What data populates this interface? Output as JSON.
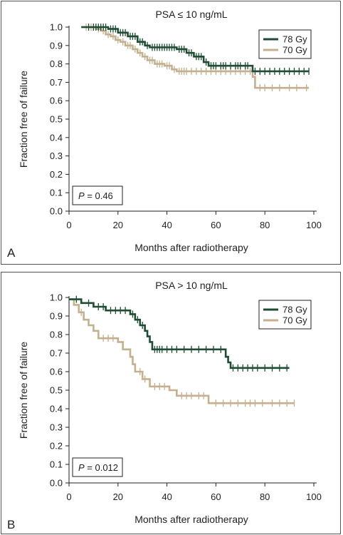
{
  "chart_data": [
    {
      "type": "line",
      "panel_letter": "A",
      "title": "PSA ≤ 10 ng/mL",
      "xlabel": "Months after radiotherapy",
      "ylabel": "Fraction free of failure",
      "xlim": [
        0,
        100
      ],
      "ylim": [
        0,
        1.0
      ],
      "xticks": [
        "0",
        "20",
        "40",
        "60",
        "80",
        "100"
      ],
      "yticks": [
        "0.0",
        "0.1",
        "0.2",
        "0.3",
        "0.4",
        "0.5",
        "0.6",
        "0.7",
        "0.8",
        "0.9",
        "1.0"
      ],
      "legend_position": "top-right",
      "annotation": {
        "label": "P",
        "value": " = 0.46"
      },
      "series": [
        {
          "name": "78 Gy",
          "color": "#1f4d33",
          "steps": [
            [
              5,
              1.0
            ],
            [
              16,
              0.99
            ],
            [
              20,
              0.97
            ],
            [
              24,
              0.95
            ],
            [
              28,
              0.92
            ],
            [
              31,
              0.9
            ],
            [
              33,
              0.89
            ],
            [
              44,
              0.88
            ],
            [
              48,
              0.86
            ],
            [
              51,
              0.84
            ],
            [
              55,
              0.81
            ],
            [
              57,
              0.79
            ],
            [
              75,
              0.76
            ],
            [
              98,
              0.76
            ]
          ],
          "censor": [
            8,
            10,
            11,
            12,
            13,
            14,
            15,
            17,
            18,
            19,
            21,
            22,
            23,
            25,
            26,
            27,
            29,
            30,
            32,
            34,
            35,
            36,
            37,
            38,
            39,
            40,
            41,
            42,
            43,
            45,
            46,
            47,
            49,
            50,
            52,
            53,
            54,
            56,
            58,
            59,
            60,
            62,
            63,
            64,
            66,
            68,
            69,
            70,
            72,
            73,
            76,
            78,
            80,
            82,
            84,
            86,
            88,
            90,
            92,
            94,
            96,
            98
          ]
        },
        {
          "name": "70 Gy",
          "color": "#c4b08f",
          "steps": [
            [
              5,
              1.0
            ],
            [
              11,
              0.99
            ],
            [
              13,
              0.98
            ],
            [
              15,
              0.96
            ],
            [
              17,
              0.95
            ],
            [
              19,
              0.93
            ],
            [
              21,
              0.92
            ],
            [
              23,
              0.9
            ],
            [
              26,
              0.88
            ],
            [
              28,
              0.86
            ],
            [
              30,
              0.84
            ],
            [
              32,
              0.82
            ],
            [
              35,
              0.8
            ],
            [
              39,
              0.79
            ],
            [
              42,
              0.77
            ],
            [
              44,
              0.76
            ],
            [
              75,
              0.73
            ],
            [
              76,
              0.67
            ],
            [
              98,
              0.67
            ]
          ],
          "censor": [
            7,
            9,
            10,
            12,
            14,
            16,
            18,
            20,
            22,
            24,
            25,
            27,
            29,
            31,
            33,
            34,
            36,
            37,
            38,
            40,
            41,
            43,
            45,
            46,
            47,
            48,
            50,
            52,
            54,
            56,
            58,
            60,
            62,
            64,
            66,
            68,
            70,
            72,
            74,
            78,
            80,
            83,
            86,
            90,
            93,
            97
          ]
        }
      ]
    },
    {
      "type": "line",
      "panel_letter": "B",
      "title": "PSA > 10 ng/mL",
      "xlabel": "Months after radiotherapy",
      "ylabel": "Fraction free of failure",
      "xlim": [
        0,
        100
      ],
      "ylim": [
        0,
        1.0
      ],
      "xticks": [
        "0",
        "20",
        "40",
        "60",
        "80",
        "100"
      ],
      "yticks": [
        "0.0",
        "0.1",
        "0.2",
        "0.3",
        "0.4",
        "0.5",
        "0.6",
        "0.7",
        "0.8",
        "0.9",
        "1.0"
      ],
      "legend_position": "top-right",
      "annotation": {
        "label": "P",
        "value": " = 0.012"
      },
      "series": [
        {
          "name": "78 Gy",
          "color": "#1f4d33",
          "steps": [
            [
              0,
              0.99
            ],
            [
              5,
              0.97
            ],
            [
              10,
              0.95
            ],
            [
              15,
              0.93
            ],
            [
              25,
              0.91
            ],
            [
              27,
              0.88
            ],
            [
              29,
              0.85
            ],
            [
              31,
              0.82
            ],
            [
              32,
              0.79
            ],
            [
              33,
              0.76
            ],
            [
              34,
              0.72
            ],
            [
              64,
              0.68
            ],
            [
              65,
              0.65
            ],
            [
              66,
              0.62
            ],
            [
              90,
              0.62
            ]
          ],
          "censor": [
            3,
            8,
            12,
            14,
            17,
            19,
            21,
            23,
            26,
            28,
            30,
            35,
            36,
            37,
            38,
            40,
            42,
            44,
            47,
            50,
            53,
            56,
            59,
            62,
            67,
            69,
            71,
            73,
            75,
            77,
            80,
            83,
            86,
            89
          ]
        },
        {
          "name": "70 Gy",
          "color": "#c4b08f",
          "steps": [
            [
              0,
              0.99
            ],
            [
              2,
              0.96
            ],
            [
              4,
              0.92
            ],
            [
              6,
              0.88
            ],
            [
              8,
              0.85
            ],
            [
              10,
              0.82
            ],
            [
              12,
              0.78
            ],
            [
              20,
              0.76
            ],
            [
              22,
              0.72
            ],
            [
              25,
              0.68
            ],
            [
              26,
              0.64
            ],
            [
              27,
              0.6
            ],
            [
              30,
              0.56
            ],
            [
              33,
              0.52
            ],
            [
              41,
              0.5
            ],
            [
              44,
              0.47
            ],
            [
              57,
              0.43
            ],
            [
              92,
              0.43
            ]
          ],
          "censor": [
            5,
            14,
            16,
            18,
            29,
            31,
            35,
            37,
            39,
            46,
            48,
            50,
            53,
            55,
            60,
            63,
            66,
            69,
            72,
            74,
            76,
            79,
            83,
            86,
            89,
            92
          ]
        }
      ]
    }
  ]
}
